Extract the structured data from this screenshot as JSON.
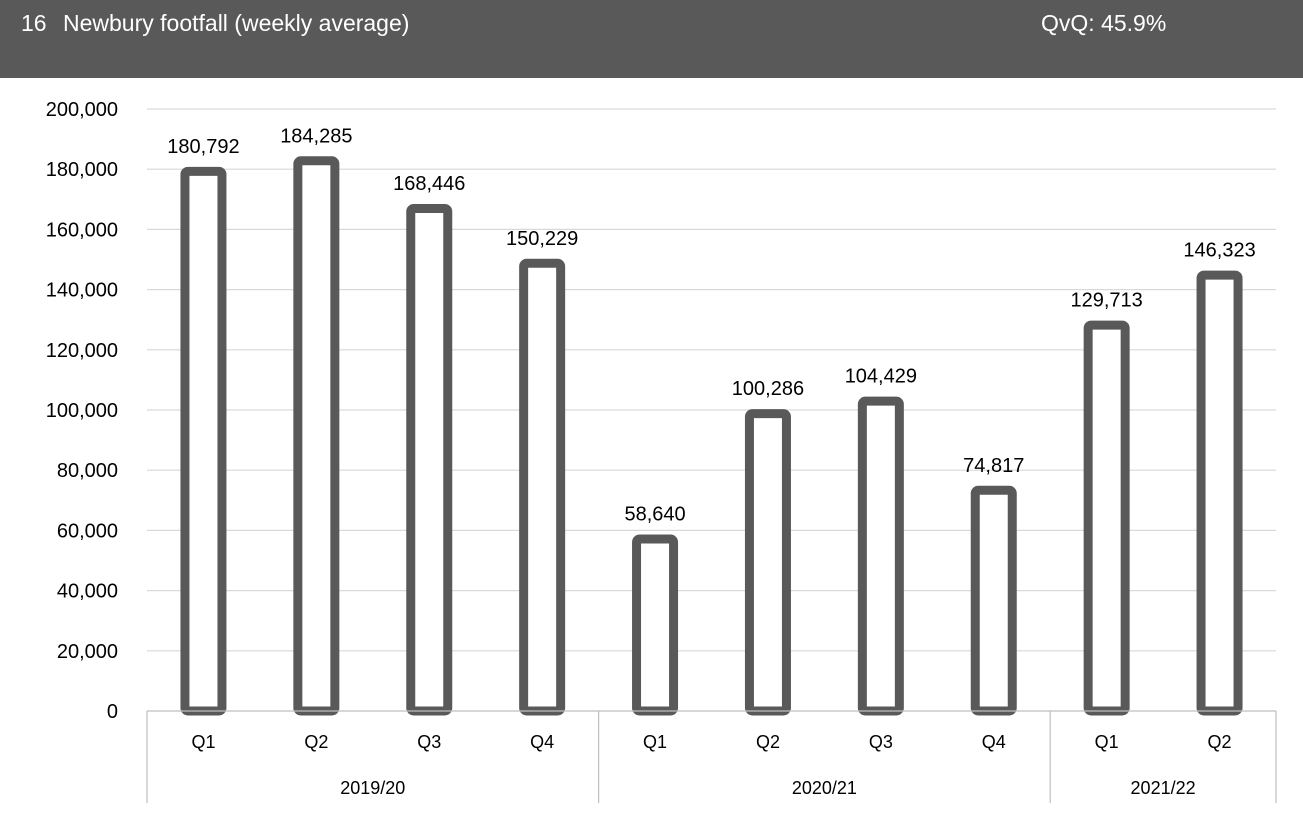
{
  "header": {
    "number": "16",
    "title": "Newbury footfall (weekly average)",
    "metric": "QvQ: 45.9%",
    "background_color": "#595959",
    "text_color": "#ffffff"
  },
  "chart_data": {
    "type": "bar",
    "title": "",
    "xlabel": "",
    "ylabel": "",
    "ylim": [
      0,
      200000
    ],
    "y_ticks": [
      0,
      20000,
      40000,
      60000,
      80000,
      100000,
      120000,
      140000,
      160000,
      180000,
      200000
    ],
    "y_tick_labels": [
      "0",
      "20,000",
      "40,000",
      "60,000",
      "80,000",
      "100,000",
      "120,000",
      "140,000",
      "160,000",
      "180,000",
      "200,000"
    ],
    "grid": true,
    "legend": "none",
    "bar_outline_color": "#595959",
    "bar_fill_color": "#ffffff",
    "categories": [
      "Q1",
      "Q2",
      "Q3",
      "Q4",
      "Q1",
      "Q2",
      "Q3",
      "Q4",
      "Q1",
      "Q2"
    ],
    "groups": [
      {
        "label": "2019/20",
        "count": 4
      },
      {
        "label": "2020/21",
        "count": 4
      },
      {
        "label": "2021/22",
        "count": 2
      }
    ],
    "values": [
      180792,
      184285,
      168446,
      150229,
      58640,
      100286,
      104429,
      74817,
      129713,
      146323
    ],
    "value_labels": [
      "180,792",
      "184,285",
      "168,446",
      "150,229",
      "58,640",
      "100,286",
      "104,429",
      "74,817",
      "129,713",
      "146,323"
    ]
  }
}
